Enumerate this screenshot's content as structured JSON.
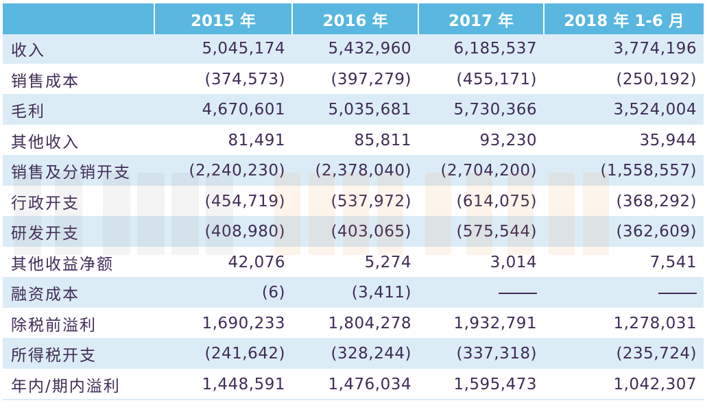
{
  "header": {
    "blank": "",
    "cols": [
      "2015 年",
      "2016 年",
      "2017 年",
      "2018 年 1-6 月"
    ]
  },
  "rows": [
    {
      "label": "收入",
      "values": [
        "5,045,174",
        "5,432,960",
        "6,185,537",
        "3,774,196"
      ]
    },
    {
      "label": "销售成本",
      "values": [
        "(374,573)",
        "(397,279)",
        "(455,171)",
        "(250,192)"
      ]
    },
    {
      "label": "毛利",
      "values": [
        "4,670,601",
        "5,035,681",
        "5,730,366",
        "3,524,004"
      ]
    },
    {
      "label": "其他收入",
      "values": [
        "81,491",
        "85,811",
        "93,230",
        "35,944"
      ]
    },
    {
      "label": "销售及分销开支",
      "values": [
        "(2,240,230)",
        "(2,378,040)",
        "(2,704,200)",
        "(1,558,557)"
      ]
    },
    {
      "label": "行政开支",
      "values": [
        "(454,719)",
        "(537,972)",
        "(614,075)",
        "(368,292)"
      ]
    },
    {
      "label": "研发开支",
      "values": [
        "(408,980)",
        "(403,065)",
        "(575,544)",
        "(362,609)"
      ]
    },
    {
      "label": "其他收益净额",
      "values": [
        "42,076",
        "5,274",
        "3,014",
        "7,541"
      ]
    },
    {
      "label": "融资成本",
      "values": [
        "(6)",
        "(3,411)",
        "—",
        "—"
      ]
    },
    {
      "label": "除税前溢利",
      "values": [
        "1,690,233",
        "1,804,278",
        "1,932,791",
        "1,278,031"
      ]
    },
    {
      "label": "所得税开支",
      "values": [
        "(241,642)",
        "(328,244)",
        "(337,318)",
        "(235,724)"
      ]
    },
    {
      "label": "年内/期内溢利",
      "values": [
        "1,448,591",
        "1,476,034",
        "1,595,473",
        "1,042,307"
      ]
    }
  ],
  "colors": {
    "header_bg": "#59b7e0",
    "stripe_bg": "#dcecf6",
    "text": "#3f2b56"
  }
}
